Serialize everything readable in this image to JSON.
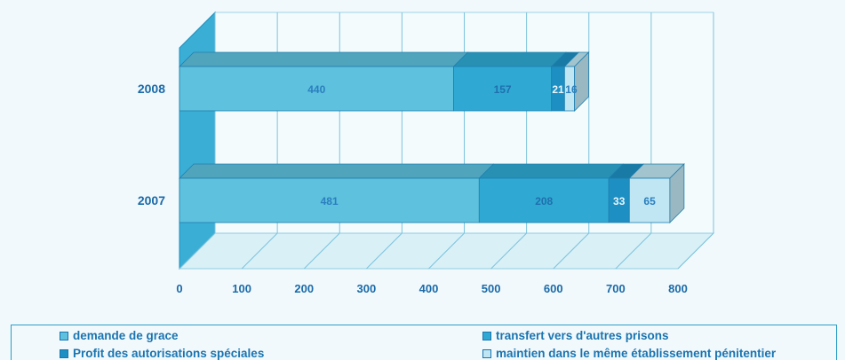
{
  "chart_data": {
    "type": "bar",
    "orientation": "horizontal",
    "stacked": true,
    "three_d": true,
    "categories": [
      "2008",
      "2007"
    ],
    "series": [
      {
        "name": "demande de grace",
        "values": [
          440,
          481
        ],
        "color": "#5ec1dd",
        "label_color": "#2a7fc0"
      },
      {
        "name": "transfert vers d'autres prisons",
        "values": [
          157,
          208
        ],
        "color": "#2fa9d3",
        "label_color": "#1f6fae"
      },
      {
        "name": "Profit des autorisations spéciales",
        "values": [
          21,
          33
        ],
        "color": "#1d8fc2",
        "label_color": "#eaf6fb"
      },
      {
        "name": "maintien dans le même établissement pénitentier",
        "values": [
          16,
          65
        ],
        "color": "#bfe6f2",
        "label_color": "#2a7fc0"
      }
    ],
    "x_ticks": [
      0,
      100,
      200,
      300,
      400,
      500,
      600,
      700,
      800
    ],
    "xlim": [
      0,
      800
    ],
    "grid": true,
    "legend_position": "bottom"
  }
}
